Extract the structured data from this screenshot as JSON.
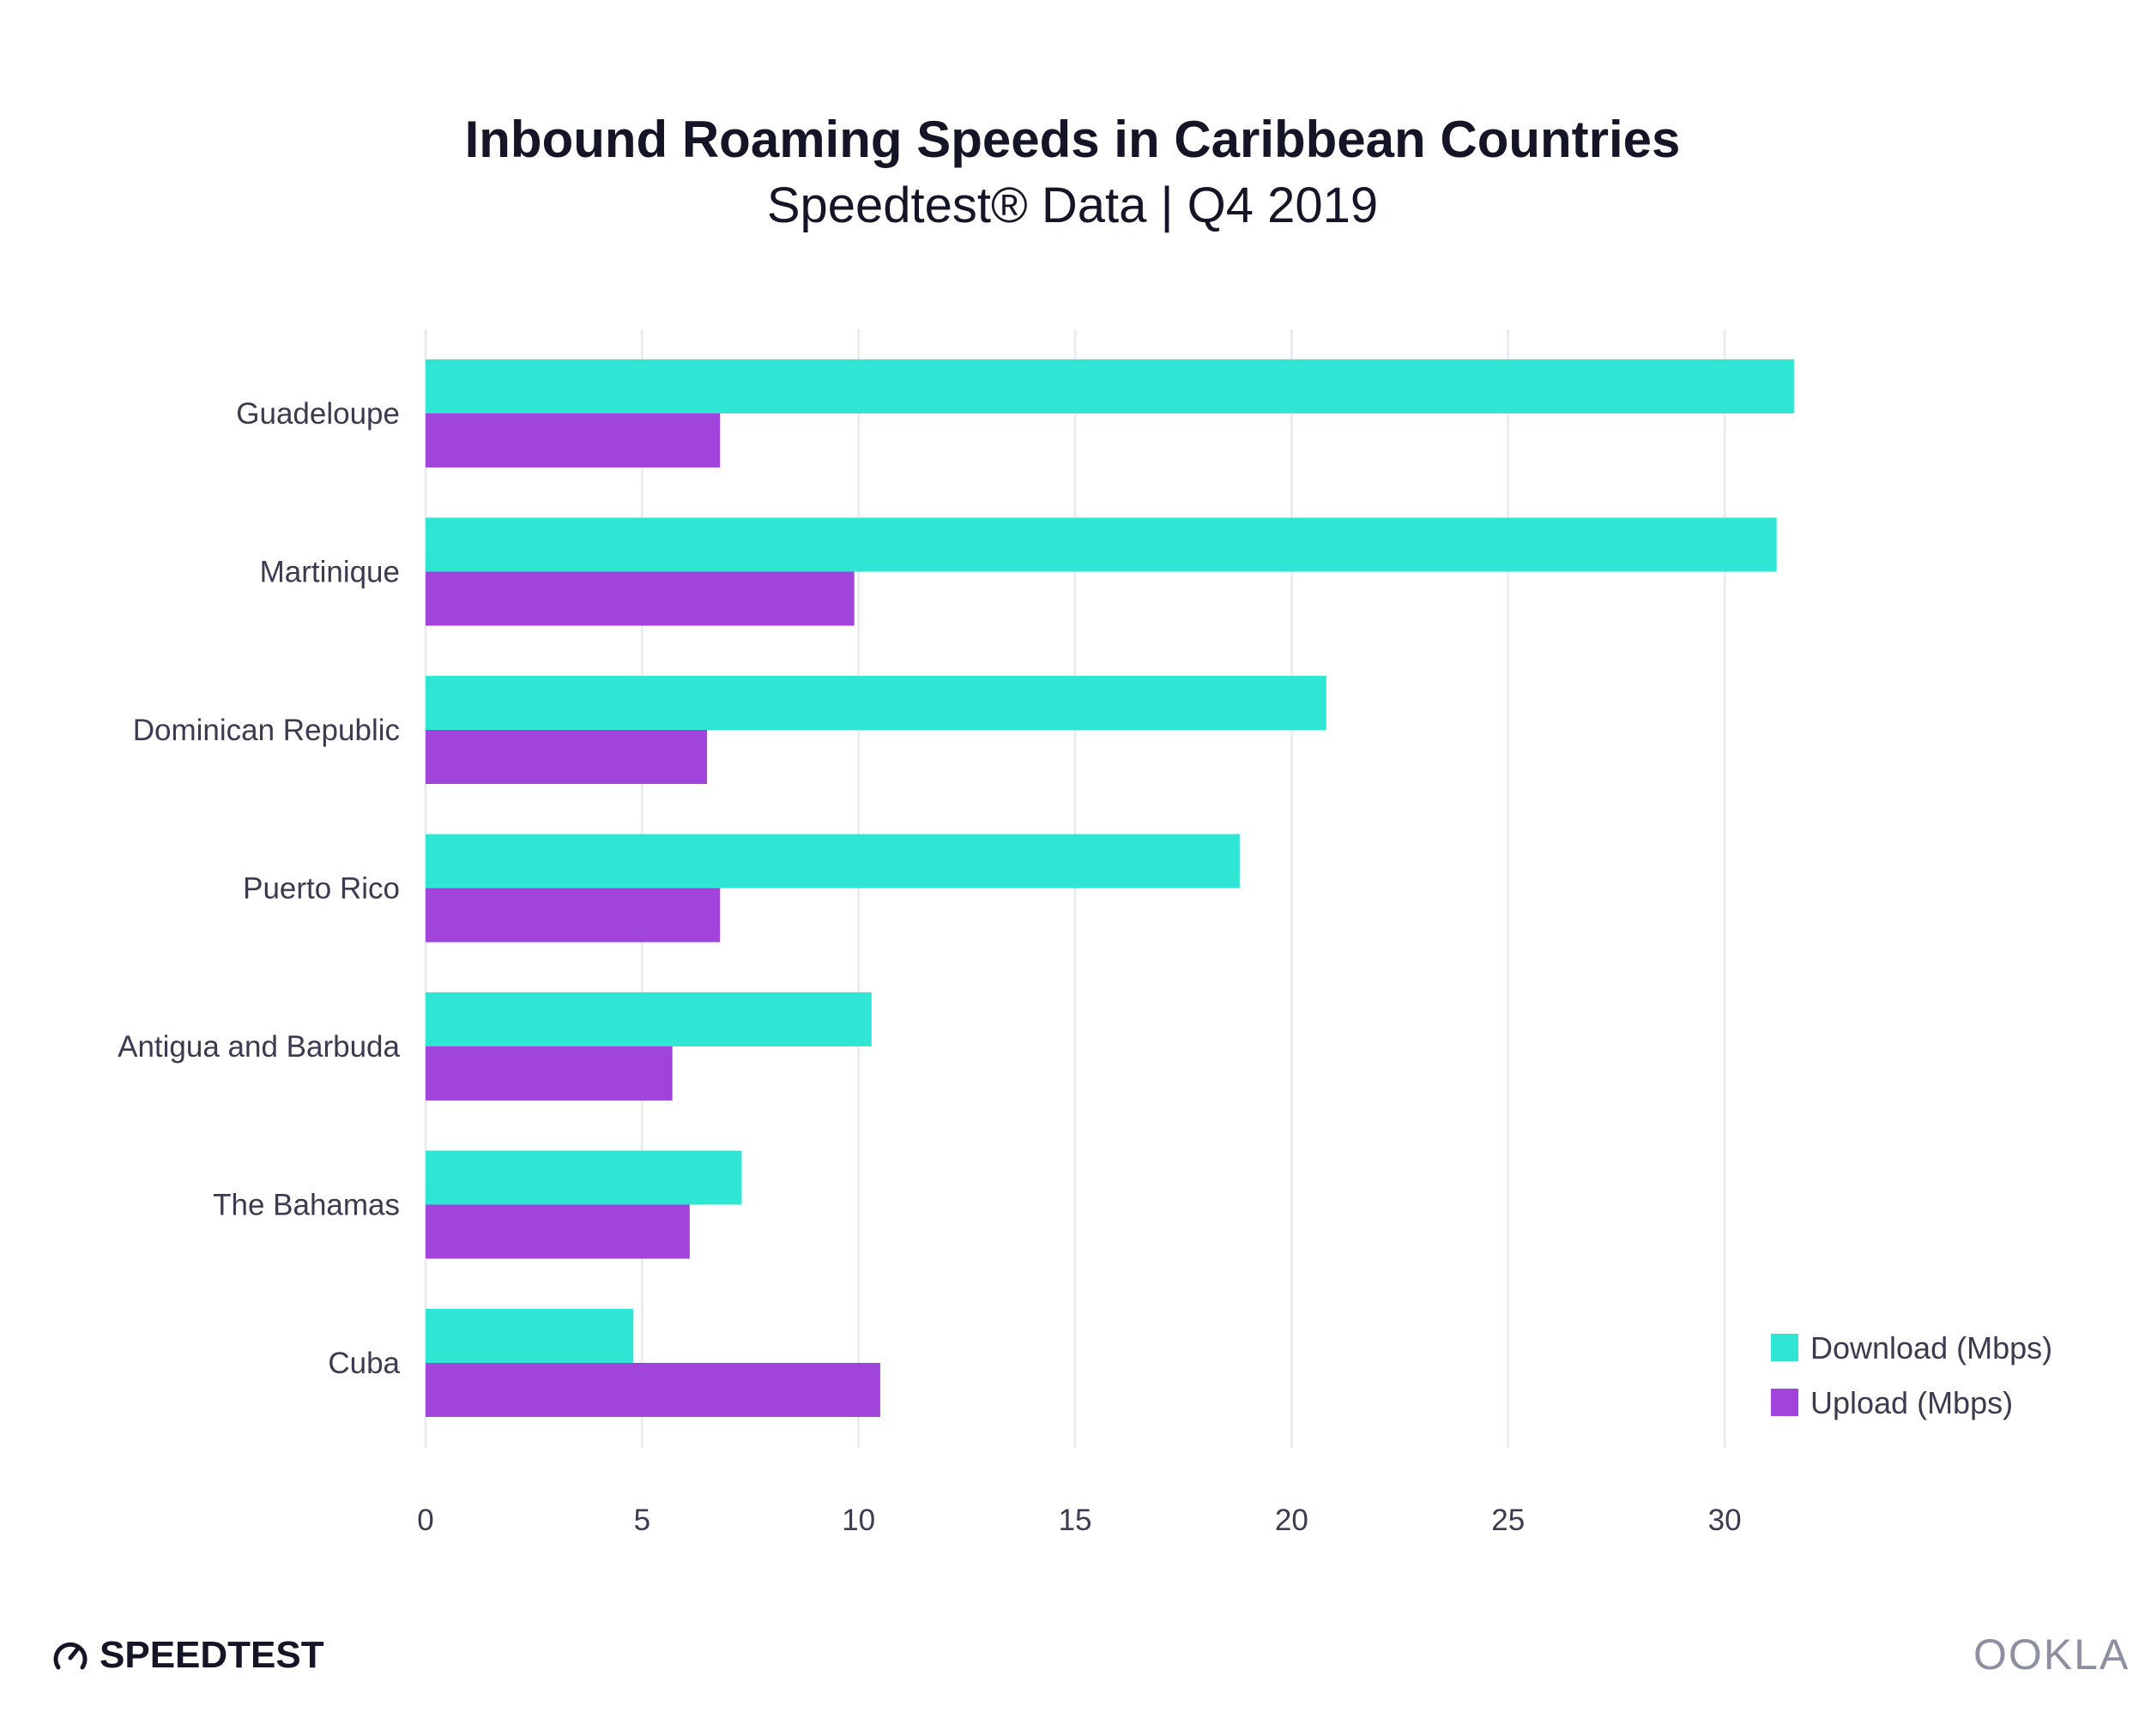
{
  "chart_data": {
    "type": "bar",
    "orientation": "horizontal",
    "title": "Inbound Roaming Speeds in Caribbean Countries",
    "subtitle": "Speedtest® Data | Q4 2019",
    "categories": [
      "Guadeloupe",
      "Martinique",
      "Dominican Republic",
      "Puerto Rico",
      "Antigua and Barbuda",
      "The Bahamas",
      "Cuba"
    ],
    "series": [
      {
        "name": "Download (Mbps)",
        "color": "#2fe5d3",
        "values": [
          31.6,
          31.2,
          20.8,
          18.8,
          10.3,
          7.3,
          4.8
        ]
      },
      {
        "name": "Upload (Mbps)",
        "color": "#a044db",
        "values": [
          6.8,
          9.9,
          6.5,
          6.8,
          5.7,
          6.1,
          10.5
        ]
      }
    ],
    "xticks": [
      0,
      5,
      10,
      15,
      20,
      25,
      30
    ],
    "xlim": [
      0,
      32
    ],
    "grid": true,
    "legend_position": "bottom-right"
  },
  "branding": {
    "left_logo": "SPEEDTEST",
    "right_logo": "OOKLA"
  }
}
